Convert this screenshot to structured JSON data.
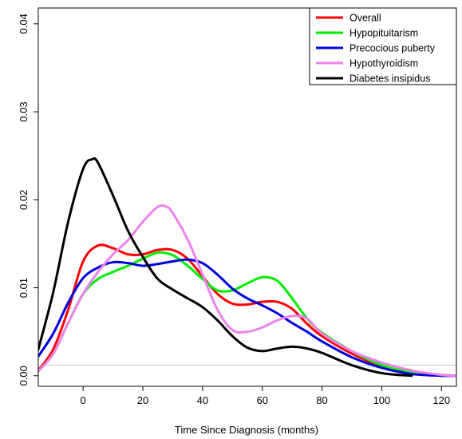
{
  "chart_data": {
    "type": "line",
    "title": "",
    "xlabel": "Time Since Diagnosis (months)",
    "ylabel": "",
    "xlim": [
      -15,
      125
    ],
    "ylim": [
      -0.0012,
      0.0418
    ],
    "xticks": [
      0,
      20,
      40,
      60,
      80,
      100,
      120
    ],
    "xtick_labels": [
      "0",
      "20",
      "40",
      "60",
      "80",
      "100",
      "120"
    ],
    "yticks": [
      0.0,
      0.01,
      0.02,
      0.03,
      0.04
    ],
    "ytick_labels": [
      "0.00",
      "0.01",
      "0.02",
      "0.03",
      "0.04"
    ],
    "grid": false,
    "legend_position": "top-right",
    "series": [
      {
        "name": "Overall",
        "color": "#ff0000",
        "x": [
          -15,
          -10,
          -5,
          0,
          5,
          10,
          15,
          20,
          25,
          30,
          35,
          40,
          45,
          50,
          55,
          60,
          65,
          70,
          75,
          80,
          90,
          100,
          110,
          120,
          125
        ],
        "y": [
          0.0006,
          0.003,
          0.0075,
          0.013,
          0.0148,
          0.0145,
          0.0138,
          0.0138,
          0.0143,
          0.0143,
          0.0133,
          0.0113,
          0.0093,
          0.0082,
          0.0081,
          0.0084,
          0.0084,
          0.0076,
          0.0059,
          0.0045,
          0.0025,
          0.0011,
          0.0004,
          0.0001,
          0.0
        ]
      },
      {
        "name": "Hypopituitarism",
        "color": "#00ee00",
        "x": [
          -15,
          -10,
          -5,
          0,
          5,
          10,
          15,
          20,
          25,
          30,
          35,
          40,
          45,
          50,
          55,
          60,
          65,
          70,
          75,
          80,
          90,
          100,
          110,
          120,
          125
        ],
        "y": [
          0.0005,
          0.0025,
          0.006,
          0.0093,
          0.011,
          0.0118,
          0.0125,
          0.0133,
          0.014,
          0.0137,
          0.0125,
          0.011,
          0.0097,
          0.0097,
          0.0105,
          0.0112,
          0.0108,
          0.0088,
          0.0065,
          0.0049,
          0.0028,
          0.0012,
          0.0004,
          0.0001,
          0.0
        ]
      },
      {
        "name": "Precocious puberty",
        "color": "#0000dd",
        "x": [
          -15,
          -10,
          -5,
          0,
          5,
          10,
          15,
          20,
          25,
          30,
          35,
          40,
          45,
          50,
          55,
          60,
          65,
          70,
          75,
          80,
          90,
          100,
          110,
          120,
          125
        ],
        "y": [
          0.0022,
          0.0048,
          0.0083,
          0.0111,
          0.0123,
          0.0129,
          0.0128,
          0.0125,
          0.0127,
          0.013,
          0.0132,
          0.0128,
          0.0115,
          0.0099,
          0.0088,
          0.008,
          0.0071,
          0.006,
          0.005,
          0.0039,
          0.0021,
          0.0009,
          0.0002,
          0.0,
          0.0
        ]
      },
      {
        "name": "Hypothyroidism",
        "color": "#ee82ee",
        "x": [
          -15,
          -10,
          -5,
          0,
          5,
          10,
          15,
          20,
          25,
          28,
          30,
          35,
          40,
          45,
          50,
          55,
          60,
          65,
          70,
          75,
          80,
          90,
          100,
          110,
          120,
          125
        ],
        "y": [
          0.0005,
          0.0025,
          0.006,
          0.0093,
          0.0118,
          0.0138,
          0.0154,
          0.0175,
          0.0192,
          0.0192,
          0.0185,
          0.0155,
          0.0115,
          0.0075,
          0.0052,
          0.005,
          0.0055,
          0.0063,
          0.0068,
          0.0065,
          0.0048,
          0.0028,
          0.0015,
          0.0006,
          0.0001,
          0.0
        ]
      },
      {
        "name": "Diabetes insipidus",
        "color": "#000000",
        "x": [
          -15,
          -10,
          -5,
          0,
          3,
          5,
          10,
          15,
          20,
          25,
          30,
          35,
          40,
          45,
          50,
          55,
          60,
          65,
          70,
          75,
          80,
          90,
          100,
          110
        ],
        "y": [
          0.003,
          0.0095,
          0.0175,
          0.0235,
          0.0246,
          0.0242,
          0.0205,
          0.0165,
          0.0135,
          0.011,
          0.0098,
          0.0088,
          0.0078,
          0.0063,
          0.0045,
          0.0032,
          0.0028,
          0.0031,
          0.0033,
          0.0031,
          0.0026,
          0.0012,
          0.0003,
          0.0
        ]
      }
    ]
  }
}
